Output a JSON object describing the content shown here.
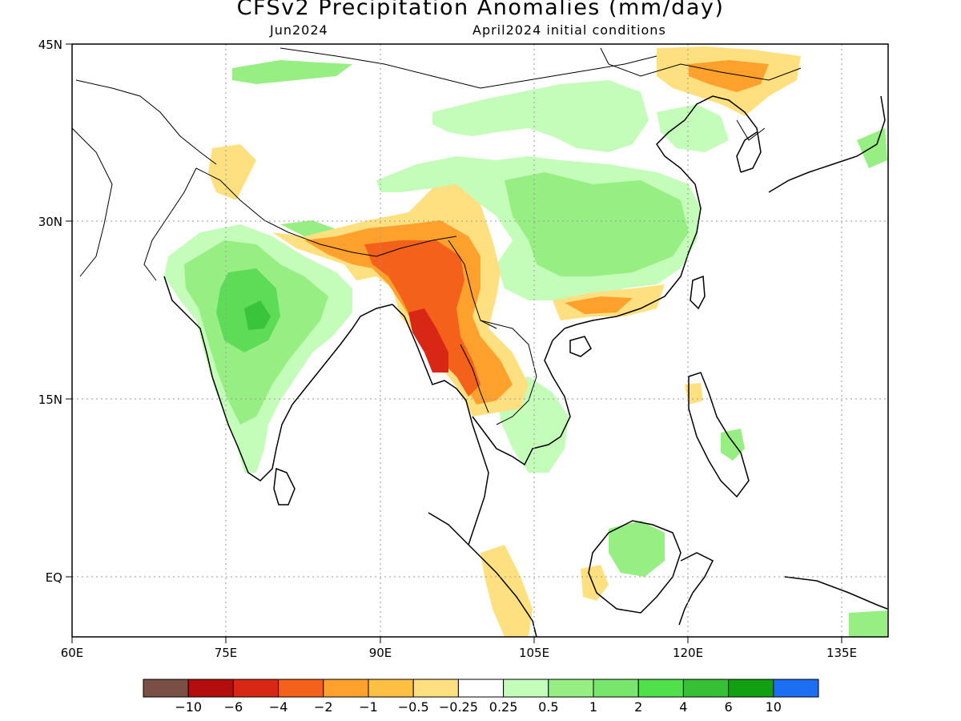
{
  "title": "CFSv2 Precipitation Anomalies (mm/day)",
  "subtitle_left": "Jun2024",
  "subtitle_right": "April2024 initial conditions",
  "map": {
    "lon_range": [
      60,
      140
    ],
    "lat_range": [
      -5,
      45
    ],
    "lon_ticks": [
      "60E",
      "75E",
      "90E",
      "105E",
      "120E",
      "135E"
    ],
    "lat_ticks": [
      "45N",
      "30N",
      "15N",
      "EQ"
    ],
    "colors": {
      "dry_strong": "#d82714",
      "dry_mid": "#f3611a",
      "dry": "#ffa12c",
      "dry_light": "#ffe080",
      "wet_light": "#c4fcb9",
      "wet": "#97ef84",
      "wet_mid": "#5fdc57",
      "wet_strong": "#3ac43b"
    }
  },
  "colorbar": {
    "colors": [
      "#7a5045",
      "#b40d0d",
      "#d82714",
      "#f3611a",
      "#ffa12c",
      "#fec043",
      "#ffe080",
      "#ffffff",
      "#c4fcb9",
      "#97ef84",
      "#78e66d",
      "#4fe04a",
      "#35c035",
      "#11a011",
      "#1c6ff1"
    ],
    "labels": [
      "−10",
      "−6",
      "−4",
      "−2",
      "−1",
      "−0.5",
      "−0.25",
      "0.25",
      "0.5",
      "1",
      "2",
      "4",
      "6",
      "10"
    ]
  }
}
